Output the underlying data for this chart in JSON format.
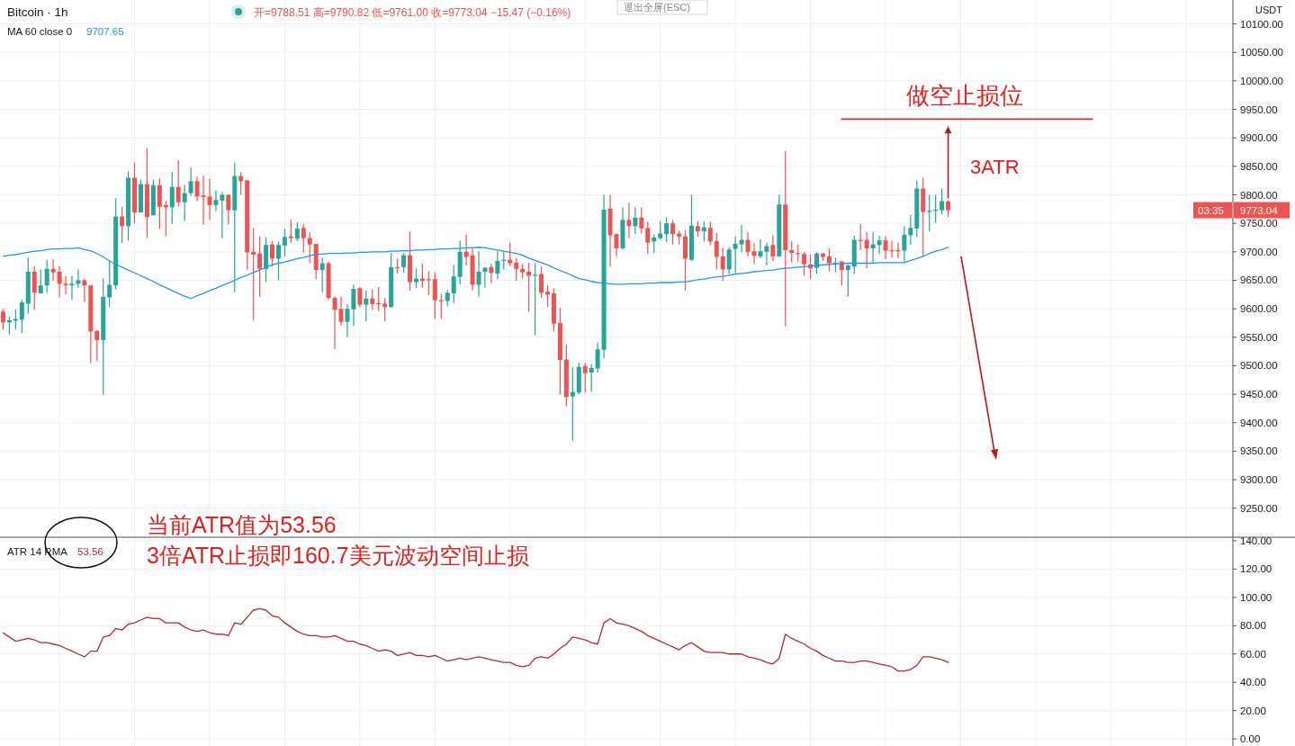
{
  "chart_data": [
    {
      "type": "candlestick",
      "title": "Bitcoin · 1h",
      "subtitle": "开=9788.51 高=9790.82 低=9761.00 收=9773.04 −15.47 (−0.16%)",
      "ylabel": "USDT",
      "categories": [
        null,
        null,
        null,
        null,
        null,
        null,
        null,
        null,
        null,
        null,
        null,
        null,
        null,
        null,
        null,
        null,
        null,
        null,
        null,
        null,
        null,
        null,
        null,
        null,
        null,
        null,
        null,
        null,
        null,
        null,
        null,
        null,
        null,
        null,
        null,
        null,
        null,
        null,
        null,
        null,
        null,
        null,
        null,
        null,
        null,
        null,
        null,
        null,
        null,
        null,
        null,
        null,
        null,
        null,
        null,
        null,
        null,
        null,
        null,
        null,
        null,
        null,
        null,
        null,
        null,
        null,
        null,
        null,
        null,
        null,
        null,
        null,
        null,
        null,
        null,
        null,
        null,
        null,
        null,
        null,
        null,
        null,
        null,
        null,
        null,
        null,
        null,
        null,
        null,
        null,
        null,
        null,
        null,
        null,
        null,
        null,
        null,
        null,
        null,
        null,
        null,
        null,
        null,
        null,
        null,
        null,
        null,
        null,
        null,
        null,
        null,
        null,
        null,
        null,
        null,
        null,
        null,
        null,
        null,
        null,
        null,
        null,
        null,
        null,
        null,
        null,
        null,
        null,
        null,
        null,
        null,
        null,
        null,
        null,
        null,
        null,
        null,
        null,
        null,
        null,
        null,
        null,
        null,
        null,
        null,
        null,
        null,
        null,
        null,
        null,
        null,
        null,
        null,
        null,
        null,
        null,
        null,
        null,
        null,
        null,
        null,
        null,
        null,
        null,
        null,
        null,
        null,
        null,
        null,
        null,
        null,
        null,
        null,
        null,
        null,
        null,
        null,
        null,
        null,
        null,
        null,
        null,
        null,
        null,
        null,
        null,
        null,
        null,
        null,
        null,
        null,
        null,
        null,
        null,
        null,
        null,
        null
      ],
      "ohlc": [
        [
          9595,
          9600,
          9563,
          9576
        ],
        [
          9576,
          9587,
          9555,
          9580
        ],
        [
          9579,
          9599,
          9564,
          9582
        ],
        [
          9581,
          9616,
          9557,
          9611
        ],
        [
          9609,
          9690,
          9591,
          9665
        ],
        [
          9665,
          9675,
          9598,
          9628
        ],
        [
          9627,
          9669,
          9627,
          9641
        ],
        [
          9641,
          9686,
          9628,
          9670
        ],
        [
          9670,
          9687,
          9649,
          9664
        ],
        [
          9665,
          9675,
          9620,
          9644
        ],
        [
          9644,
          9657,
          9625,
          9641
        ],
        [
          9641,
          9658,
          9616,
          9644
        ],
        [
          9644,
          9669,
          9637,
          9650
        ],
        [
          9650,
          9653,
          9612,
          9641
        ],
        [
          9641,
          9641,
          9505,
          9560
        ],
        [
          9561,
          9563,
          9508,
          9545
        ],
        [
          9545,
          9653,
          9449,
          9621
        ],
        [
          9620,
          9685,
          9603,
          9642
        ],
        [
          9641,
          9794,
          9634,
          9762
        ],
        [
          9762,
          9779,
          9715,
          9745
        ],
        [
          9745,
          9841,
          9720,
          9830
        ],
        [
          9830,
          9857,
          9750,
          9769
        ],
        [
          9769,
          9827,
          9769,
          9819
        ],
        [
          9819,
          9882,
          9724,
          9761
        ],
        [
          9764,
          9827,
          9764,
          9817
        ],
        [
          9817,
          9829,
          9740,
          9779
        ],
        [
          9782,
          9790,
          9727,
          9778
        ],
        [
          9778,
          9840,
          9749,
          9814
        ],
        [
          9814,
          9861,
          9779,
          9787
        ],
        [
          9787,
          9817,
          9754,
          9803
        ],
        [
          9803,
          9848,
          9798,
          9824
        ],
        [
          9824,
          9832,
          9789,
          9797
        ],
        [
          9799,
          9834,
          9748,
          9796
        ],
        [
          9797,
          9828,
          9756,
          9782
        ],
        [
          9782,
          9808,
          9771,
          9791
        ],
        [
          9790,
          9805,
          9724,
          9800
        ],
        [
          9800,
          9801,
          9748,
          9773
        ],
        [
          9773,
          9856,
          9629,
          9833
        ],
        [
          9833,
          9840,
          9800,
          9824
        ],
        [
          9825,
          9827,
          9669,
          9699
        ],
        [
          9700,
          9742,
          9579,
          9695
        ],
        [
          9697,
          9727,
          9621,
          9670
        ],
        [
          9670,
          9726,
          9647,
          9712
        ],
        [
          9713,
          9719,
          9674,
          9688
        ],
        [
          9688,
          9718,
          9650,
          9712
        ],
        [
          9711,
          9740,
          9692,
          9726
        ],
        [
          9727,
          9756,
          9716,
          9724
        ],
        [
          9723,
          9752,
          9719,
          9741
        ],
        [
          9742,
          9749,
          9699,
          9724
        ],
        [
          9724,
          9735,
          9680,
          9713
        ],
        [
          9714,
          9714,
          9652,
          9668
        ],
        [
          9668,
          9690,
          9629,
          9680
        ],
        [
          9680,
          9683,
          9616,
          9619
        ],
        [
          9619,
          9621,
          9529,
          9598
        ],
        [
          9600,
          9621,
          9571,
          9577
        ],
        [
          9577,
          9608,
          9550,
          9600
        ],
        [
          9599,
          9642,
          9570,
          9635
        ],
        [
          9636,
          9638,
          9603,
          9607
        ],
        [
          9607,
          9632,
          9578,
          9618
        ],
        [
          9618,
          9634,
          9598,
          9608
        ],
        [
          9610,
          9638,
          9596,
          9608
        ],
        [
          9609,
          9619,
          9578,
          9603
        ],
        [
          9603,
          9698,
          9602,
          9673
        ],
        [
          9673,
          9688,
          9662,
          9671
        ],
        [
          9673,
          9698,
          9663,
          9694
        ],
        [
          9694,
          9735,
          9632,
          9647
        ],
        [
          9647,
          9671,
          9636,
          9653
        ],
        [
          9653,
          9679,
          9637,
          9649
        ],
        [
          9652,
          9666,
          9624,
          9650
        ],
        [
          9652,
          9664,
          9582,
          9615
        ],
        [
          9615,
          9626,
          9583,
          9613
        ],
        [
          9614,
          9633,
          9604,
          9628
        ],
        [
          9627,
          9677,
          9610,
          9657
        ],
        [
          9656,
          9720,
          9643,
          9700
        ],
        [
          9700,
          9730,
          9676,
          9691
        ],
        [
          9694,
          9708,
          9632,
          9642
        ],
        [
          9642,
          9701,
          9621,
          9665
        ],
        [
          9665,
          9673,
          9637,
          9672
        ],
        [
          9673,
          9679,
          9645,
          9663
        ],
        [
          9662,
          9701,
          9652,
          9684
        ],
        [
          9684,
          9700,
          9669,
          9686
        ],
        [
          9686,
          9716,
          9675,
          9680
        ],
        [
          9681,
          9689,
          9649,
          9670
        ],
        [
          9670,
          9679,
          9653,
          9664
        ],
        [
          9665,
          9681,
          9595,
          9658
        ],
        [
          9658,
          9680,
          9553,
          9660
        ],
        [
          9661,
          9675,
          9619,
          9628
        ],
        [
          9630,
          9642,
          9603,
          9625
        ],
        [
          9627,
          9636,
          9560,
          9574
        ],
        [
          9575,
          9602,
          9449,
          9510
        ],
        [
          9511,
          9538,
          9429,
          9445
        ],
        [
          9446,
          9497,
          9368,
          9454
        ],
        [
          9453,
          9505,
          9450,
          9498
        ],
        [
          9499,
          9505,
          9453,
          9487
        ],
        [
          9488,
          9503,
          9455,
          9496
        ],
        [
          9495,
          9541,
          9488,
          9529
        ],
        [
          9528,
          9800,
          9513,
          9774
        ],
        [
          9776,
          9800,
          9674,
          9729
        ],
        [
          9731,
          9732,
          9691,
          9706
        ],
        [
          9706,
          9778,
          9704,
          9756
        ],
        [
          9756,
          9786,
          9724,
          9745
        ],
        [
          9745,
          9778,
          9731,
          9760
        ],
        [
          9760,
          9778,
          9732,
          9741
        ],
        [
          9742,
          9753,
          9696,
          9716
        ],
        [
          9718,
          9730,
          9698,
          9725
        ],
        [
          9724,
          9754,
          9722,
          9732
        ],
        [
          9731,
          9761,
          9717,
          9750
        ],
        [
          9750,
          9756,
          9713,
          9731
        ],
        [
          9732,
          9737,
          9713,
          9727
        ],
        [
          9727,
          9738,
          9632,
          9688
        ],
        [
          9686,
          9800,
          9684,
          9746
        ],
        [
          9745,
          9754,
          9727,
          9736
        ],
        [
          9736,
          9753,
          9718,
          9743
        ],
        [
          9742,
          9753,
          9711,
          9718
        ],
        [
          9719,
          9733,
          9669,
          9691
        ],
        [
          9692,
          9707,
          9649,
          9669
        ],
        [
          9669,
          9708,
          9661,
          9704
        ],
        [
          9705,
          9727,
          9663,
          9714
        ],
        [
          9713,
          9747,
          9699,
          9721
        ],
        [
          9721,
          9735,
          9692,
          9700
        ],
        [
          9701,
          9715,
          9678,
          9693
        ],
        [
          9692,
          9722,
          9689,
          9701
        ],
        [
          9700,
          9716,
          9676,
          9710
        ],
        [
          9712,
          9729,
          9684,
          9692
        ],
        [
          9692,
          9800,
          9691,
          9783
        ],
        [
          9783,
          9877,
          9569,
          9703
        ],
        [
          9703,
          9719,
          9682,
          9698
        ],
        [
          9698,
          9713,
          9683,
          9696
        ],
        [
          9696,
          9700,
          9658,
          9678
        ],
        [
          9678,
          9695,
          9652,
          9671
        ],
        [
          9672,
          9699,
          9661,
          9697
        ],
        [
          9697,
          9698,
          9684,
          9691
        ],
        [
          9692,
          9706,
          9666,
          9680
        ],
        [
          9679,
          9690,
          9664,
          9681
        ],
        [
          9683,
          9684,
          9641,
          9668
        ],
        [
          9668,
          9678,
          9622,
          9676
        ],
        [
          9674,
          9728,
          9661,
          9721
        ],
        [
          9721,
          9749,
          9703,
          9719
        ],
        [
          9721,
          9735,
          9671,
          9706
        ],
        [
          9706,
          9735,
          9680,
          9713
        ],
        [
          9712,
          9728,
          9696,
          9720
        ],
        [
          9720,
          9727,
          9687,
          9702
        ],
        [
          9703,
          9719,
          9690,
          9701
        ],
        [
          9703,
          9716,
          9689,
          9701
        ],
        [
          9702,
          9745,
          9682,
          9730
        ],
        [
          9729,
          9765,
          9712,
          9742
        ],
        [
          9741,
          9825,
          9726,
          9811
        ],
        [
          9811,
          9830,
          9692,
          9770
        ],
        [
          9770,
          9800,
          9736,
          9772
        ],
        [
          9772,
          9800,
          9751,
          9774
        ],
        [
          9773,
          9811,
          9766,
          9789
        ],
        [
          9788.51,
          9790.82,
          9761.0,
          9773.04
        ],
        null,
        null,
        null,
        null,
        null,
        null,
        null,
        null,
        null,
        null,
        null,
        null,
        null,
        null,
        null,
        null,
        null,
        null,
        null,
        null,
        null,
        null,
        null,
        null,
        null,
        null,
        null,
        null,
        null,
        null,
        null,
        null,
        null,
        null,
        null,
        null,
        null,
        null,
        null,
        null,
        null,
        null,
        null,
        null,
        null
      ],
      "series": [
        {
          "name": "MA 60 close 0",
          "type": "line",
          "color": "#2196f3",
          "values": [
            9692,
            9694,
            9695,
            9697,
            9699,
            9701,
            9702,
            9704,
            9705,
            9705,
            9706,
            9706,
            9707,
            9704,
            9702,
            9697,
            9691,
            9684,
            9678,
            9673,
            9668,
            9663,
            9658,
            9653,
            9648,
            9642,
            9637,
            9632,
            9627,
            9622,
            9618,
            9623,
            9627,
            9632,
            9636,
            9641,
            9645,
            9650,
            9655,
            9659,
            9664,
            9668,
            9673,
            9677,
            9680,
            9682,
            9685,
            9688,
            9690,
            9693,
            9696,
            9696,
            9697,
            9697,
            9697,
            9698,
            9698,
            9699,
            9699,
            9700,
            9700,
            9700,
            9701,
            9701,
            9702,
            9702,
            9703,
            9703,
            9704,
            9704,
            9705,
            9705,
            9706,
            9706,
            9707,
            9707,
            9708,
            9707,
            9705,
            9703,
            9701,
            9699,
            9697,
            9694,
            9689,
            9685,
            9681,
            9677,
            9672,
            9667,
            9663,
            9658,
            9653,
            9651,
            9648,
            9646,
            9645,
            9644,
            9643,
            9643,
            9644,
            9644,
            9644,
            9645,
            9645,
            9646,
            9646,
            9646,
            9647,
            9647,
            9649,
            9651,
            9652,
            9654,
            9656,
            9657,
            9659,
            9661,
            9662,
            9663,
            9665,
            9666,
            9667,
            9668,
            9670,
            9671,
            9672,
            9673,
            9674,
            9675,
            9676,
            9677,
            9678,
            9679,
            9679,
            9680,
            9680,
            9680,
            9680,
            9680,
            9681,
            9681,
            9681,
            9681,
            9681,
            9685,
            9688,
            9692,
            9697,
            9701,
            9704,
            9708,
            null,
            null,
            null,
            null,
            null,
            null,
            null,
            null,
            null,
            null,
            null,
            null,
            null,
            null,
            null,
            null,
            null,
            null,
            null,
            null,
            null,
            null,
            null,
            null,
            null,
            null,
            null,
            null,
            null,
            null,
            null,
            null,
            null,
            null,
            null,
            null,
            null,
            null,
            null,
            null,
            null,
            null,
            null,
            null,
            null
          ]
        },
        {
          "type": "line",
          "color": "#d32f2f",
          "values": [
            null,
            null,
            null,
            null,
            null,
            null,
            null,
            null,
            null,
            null,
            null,
            null,
            null,
            null,
            null,
            null,
            null,
            null,
            null,
            null,
            null,
            null,
            null,
            null,
            null,
            null,
            null,
            null,
            null,
            null,
            null,
            null,
            null,
            null,
            null,
            null,
            null,
            null,
            null,
            null,
            null,
            null,
            null,
            null,
            null,
            null,
            null,
            null,
            null,
            null,
            null,
            null,
            null,
            null,
            null,
            null,
            null,
            null,
            null,
            null,
            null,
            null,
            null,
            null,
            null,
            null,
            null,
            null,
            null,
            null,
            null,
            null,
            null,
            null,
            null,
            null,
            null,
            null,
            null,
            null,
            null,
            null,
            null,
            null,
            null,
            null,
            null,
            null,
            null,
            null,
            null,
            null,
            null,
            null,
            null,
            null,
            null,
            null,
            null,
            null,
            null,
            null,
            null,
            null,
            null,
            null,
            null,
            null,
            null,
            null,
            null,
            null,
            null,
            null,
            null,
            null,
            null,
            null,
            null,
            null,
            null,
            null,
            null,
            null,
            null,
            null,
            null,
            null,
            null,
            null,
            null,
            null,
            null,
            null,
            9933,
            9933,
            9933,
            9933,
            9933,
            9933,
            9933,
            9933,
            9933,
            9933,
            9933,
            9933,
            9933,
            9933,
            9933,
            9933,
            9933,
            9933,
            9933,
            9933,
            9933,
            9933,
            9933,
            9933,
            9933,
            9933,
            9933,
            9933,
            9933,
            9933,
            9933,
            9933,
            9933,
            9933,
            9933,
            9933,
            9933,
            9933,
            9933,
            9933,
            9933,
            null,
            null,
            null,
            null,
            null,
            null,
            null,
            null,
            null,
            null,
            null,
            null,
            null,
            null,
            null,
            null,
            null,
            null,
            null,
            null,
            null,
            null
          ]
        }
      ],
      "ylim": [
        9199,
        10142
      ],
      "yticks": [
        {
          "value": 9250,
          "label": "9250.00"
        },
        {
          "value": 9300,
          "label": "9300.00"
        },
        {
          "value": 9350,
          "label": "9350.00"
        },
        {
          "value": 9400,
          "label": "9400.00"
        },
        {
          "value": 9450,
          "label": "9450.00"
        },
        {
          "value": 9500,
          "label": "9500.00"
        },
        {
          "value": 9550,
          "label": "9550.00"
        },
        {
          "value": 9600,
          "label": "9600.00"
        },
        {
          "value": 9650,
          "label": "9650.00"
        },
        {
          "value": 9700,
          "label": "9700.00"
        },
        {
          "value": 9750,
          "label": "9750.00"
        },
        {
          "value": 9800,
          "label": "9800.00"
        },
        {
          "value": 9850,
          "label": "9850.00"
        },
        {
          "value": 9900,
          "label": "9900.00"
        },
        {
          "value": 9950,
          "label": "9950.00"
        },
        {
          "value": 10000,
          "label": "10000.00"
        },
        {
          "value": 10050,
          "label": "10050.00"
        },
        {
          "value": 10100,
          "label": "10100.00"
        }
      ],
      "grid": true,
      "tick_labels": "y",
      "annotations": [
        "退出全屏(ESC)",
        "做空止损位",
        "3ATR",
        "9773.04",
        "03:35",
        "9707.65"
      ]
    },
    {
      "type": "line",
      "categories": [
        null,
        null,
        null,
        null,
        null,
        null,
        null,
        null,
        null,
        null,
        null,
        null,
        null,
        null,
        null,
        null,
        null,
        null,
        null,
        null,
        null,
        null,
        null,
        null,
        null,
        null,
        null,
        null,
        null,
        null,
        null,
        null,
        null,
        null,
        null,
        null,
        null,
        null,
        null,
        null,
        null,
        null,
        null,
        null,
        null,
        null,
        null,
        null,
        null,
        null,
        null,
        null,
        null,
        null,
        null,
        null,
        null,
        null,
        null,
        null,
        null,
        null,
        null,
        null,
        null,
        null,
        null,
        null,
        null,
        null,
        null,
        null,
        null,
        null,
        null,
        null,
        null,
        null,
        null,
        null,
        null,
        null,
        null,
        null,
        null,
        null,
        null,
        null,
        null,
        null,
        null,
        null,
        null,
        null,
        null,
        null,
        null,
        null,
        null,
        null,
        null,
        null,
        null,
        null,
        null,
        null,
        null,
        null,
        null,
        null,
        null,
        null,
        null,
        null,
        null,
        null,
        null,
        null,
        null,
        null,
        null,
        null,
        null,
        null,
        null,
        null,
        null,
        null,
        null,
        null,
        null,
        null,
        null,
        null,
        null,
        null,
        null,
        null,
        null,
        null,
        null,
        null,
        null,
        null,
        null,
        null,
        null,
        null,
        null,
        null,
        null,
        null,
        null,
        null,
        null,
        null,
        null,
        null,
        null,
        null,
        null,
        null,
        null,
        null,
        null,
        null,
        null,
        null,
        null,
        null,
        null,
        null,
        null,
        null,
        null,
        null,
        null,
        null,
        null,
        null,
        null,
        null,
        null,
        null,
        null,
        null,
        null,
        null,
        null,
        null,
        null,
        null,
        null,
        null,
        null,
        null,
        null
      ],
      "series": [
        {
          "name": "ATR 14 RMA",
          "color": "#b52b27",
          "values": [
            75,
            72,
            69,
            70,
            71,
            70,
            68,
            68,
            67,
            66,
            64,
            62,
            60,
            58,
            62,
            62,
            72,
            73,
            78,
            77,
            81,
            82,
            84,
            86,
            85,
            85,
            82,
            82,
            82,
            79,
            77,
            76,
            77,
            75,
            74,
            74,
            73,
            82,
            81,
            86,
            91,
            92,
            91,
            87,
            86,
            82,
            79,
            76,
            74,
            73,
            73,
            72,
            72,
            73,
            71,
            69,
            69,
            67,
            66,
            64,
            62,
            63,
            62,
            59,
            60,
            61,
            59,
            59,
            58,
            59,
            57,
            55,
            56,
            57,
            56,
            57,
            58,
            57,
            56,
            55,
            54,
            54,
            52,
            51,
            52,
            57,
            58,
            57,
            60,
            64,
            67,
            72,
            71,
            70,
            68,
            67,
            82,
            85,
            82,
            81,
            80,
            78,
            76,
            73,
            71,
            69,
            67,
            65,
            63,
            66,
            68,
            65,
            62,
            61,
            61,
            61,
            60,
            60,
            60,
            58,
            57,
            56,
            54,
            53,
            57,
            74,
            71,
            69,
            67,
            64,
            62,
            59,
            57,
            55,
            55,
            54,
            54,
            55,
            55,
            54,
            53,
            52,
            51,
            48,
            48,
            49,
            52,
            58,
            58,
            57,
            56,
            54,
            null,
            null,
            null,
            null,
            null,
            null,
            null,
            null,
            null,
            null,
            null,
            null,
            null,
            null,
            null,
            null,
            null,
            null,
            null,
            null,
            null,
            null,
            null,
            null,
            null,
            null,
            null,
            null,
            null,
            null,
            null,
            null,
            null,
            null,
            null,
            null,
            null,
            null,
            null,
            null,
            null,
            null,
            null,
            null,
            null
          ]
        }
      ],
      "ylim": [
        -5,
        142.5
      ],
      "yticks": [
        {
          "value": 0,
          "label": "0.00"
        },
        {
          "value": 20,
          "label": "20.00"
        },
        {
          "value": 40,
          "label": "40.00"
        },
        {
          "value": 60,
          "label": "60.00"
        },
        {
          "value": 80,
          "label": "80.00"
        },
        {
          "value": 100,
          "label": "100.00"
        },
        {
          "value": 120,
          "label": "120.00"
        },
        {
          "value": 140,
          "label": "140.00"
        }
      ],
      "grid": true,
      "tick_labels": "y",
      "annotations": [
        "53.56",
        "当前ATR值为53.56",
        "3倍ATR止损即160.7美元波动空间止损"
      ]
    }
  ]
}
